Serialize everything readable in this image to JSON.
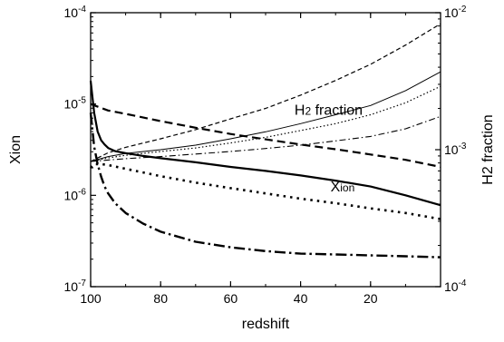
{
  "chart_data": {
    "type": "line",
    "xlabel": "redshift",
    "ylabel_left": "Xion",
    "ylabel_right": "H2 fraction",
    "x_reversed": true,
    "xlim": [
      100,
      0
    ],
    "xticks": [
      {
        "value": 100,
        "label": "100"
      },
      {
        "value": 80,
        "label": "80"
      },
      {
        "value": 60,
        "label": "60"
      },
      {
        "value": 40,
        "label": "40"
      },
      {
        "value": 20,
        "label": "20"
      }
    ],
    "left_axis": {
      "scale": "log",
      "ylim": [
        1e-07,
        0.0001
      ],
      "ticks": [
        {
          "value": 1e-07,
          "base": "10",
          "exp": "-7"
        },
        {
          "value": 1e-06,
          "base": "10",
          "exp": "-6"
        },
        {
          "value": 1e-05,
          "base": "10",
          "exp": "-5"
        },
        {
          "value": 0.0001,
          "base": "10",
          "exp": "-4"
        }
      ]
    },
    "right_axis": {
      "scale": "log",
      "ylim": [
        0.0001,
        0.01
      ],
      "ticks": [
        {
          "value": 0.0001,
          "base": "10",
          "exp": "-4"
        },
        {
          "value": 0.001,
          "base": "10",
          "exp": "-3"
        },
        {
          "value": 0.01,
          "base": "10",
          "exp": "-2"
        }
      ]
    },
    "annotations": [
      {
        "text_main": "H",
        "text_sub": "2",
        "text_rest": " fraction",
        "x": 32,
        "y_right": 0.0018,
        "axis": "right"
      },
      {
        "text_main": "X",
        "text_sub": "ion",
        "text_rest": "",
        "x": 28,
        "y_left": 1.1e-06,
        "axis": "left"
      }
    ],
    "series": [
      {
        "axis": "left",
        "style": "solid-thick",
        "x": [
          100,
          99,
          98,
          97,
          96,
          95,
          93,
          90,
          85,
          80,
          70,
          60,
          50,
          40,
          30,
          20,
          10,
          0
        ],
        "y": [
          1.8e-05,
          8e-06,
          5e-06,
          4e-06,
          3.6e-06,
          3.3e-06,
          3.05e-06,
          2.9e-06,
          2.7e-06,
          2.55e-06,
          2.3e-06,
          2.05e-06,
          1.85e-06,
          1.65e-06,
          1.45e-06,
          1.25e-06,
          1e-06,
          7.8e-07
        ]
      },
      {
        "axis": "left",
        "style": "dashed-thick",
        "x": [
          100,
          95,
          90,
          80,
          70,
          60,
          50,
          40,
          30,
          20,
          10,
          0
        ],
        "y": [
          1e-05,
          8.5e-06,
          7.8e-06,
          6.5e-06,
          5.5e-06,
          4.7e-06,
          4.1e-06,
          3.6e-06,
          3.2e-06,
          2.8e-06,
          2.45e-06,
          2.05e-06
        ]
      },
      {
        "axis": "left",
        "style": "dotted-thick",
        "x": [
          100,
          99,
          97,
          95,
          90,
          85,
          80,
          70,
          60,
          50,
          40,
          30,
          20,
          10,
          0
        ],
        "y": [
          2e-06,
          2.2e-06,
          2.2e-06,
          2.15e-06,
          1.95e-06,
          1.78e-06,
          1.62e-06,
          1.38e-06,
          1.2e-06,
          1.05e-06,
          9.2e-07,
          8.2e-07,
          7.2e-07,
          6.4e-07,
          5.5e-07
        ]
      },
      {
        "axis": "left",
        "style": "dashdot-thick",
        "x": [
          100,
          99,
          98,
          97,
          96,
          95,
          93,
          90,
          85,
          80,
          70,
          60,
          50,
          40,
          30,
          20,
          10,
          0
        ],
        "y": [
          8e-06,
          3.4e-06,
          2.2e-06,
          1.6e-06,
          1.25e-06,
          1.05e-06,
          8.2e-07,
          6.4e-07,
          4.9e-07,
          4e-07,
          3.1e-07,
          2.7e-07,
          2.45e-07,
          2.3e-07,
          2.25e-07,
          2.2e-07,
          2.15e-07,
          2.1e-07
        ]
      },
      {
        "axis": "right",
        "style": "dashed-thin",
        "x": [
          100,
          95,
          90,
          80,
          70,
          60,
          50,
          40,
          30,
          20,
          10,
          0
        ],
        "y": [
          0.00082,
          0.00095,
          0.00104,
          0.0012,
          0.0014,
          0.00168,
          0.002,
          0.0025,
          0.0032,
          0.0042,
          0.0058,
          0.0083
        ]
      },
      {
        "axis": "right",
        "style": "solid-thin",
        "x": [
          100,
          95,
          90,
          80,
          70,
          60,
          50,
          40,
          30,
          20,
          10,
          0
        ],
        "y": [
          0.00082,
          0.00089,
          0.00094,
          0.001,
          0.00108,
          0.0012,
          0.00135,
          0.00155,
          0.0018,
          0.0021,
          0.0027,
          0.0037
        ]
      },
      {
        "axis": "right",
        "style": "dotted-thin",
        "x": [
          100,
          95,
          90,
          80,
          70,
          60,
          50,
          40,
          30,
          20,
          10,
          0
        ],
        "y": [
          0.00082,
          0.00087,
          0.00091,
          0.00097,
          0.00103,
          0.00112,
          0.00123,
          0.00138,
          0.00155,
          0.0018,
          0.0022,
          0.0029
        ]
      },
      {
        "axis": "right",
        "style": "dashdot-thin",
        "x": [
          100,
          95,
          90,
          80,
          70,
          60,
          50,
          40,
          30,
          20,
          10,
          0
        ],
        "y": [
          0.00082,
          0.00084,
          0.00086,
          0.00089,
          0.00093,
          0.00097,
          0.00102,
          0.00108,
          0.00116,
          0.00125,
          0.00142,
          0.00175
        ]
      }
    ]
  }
}
